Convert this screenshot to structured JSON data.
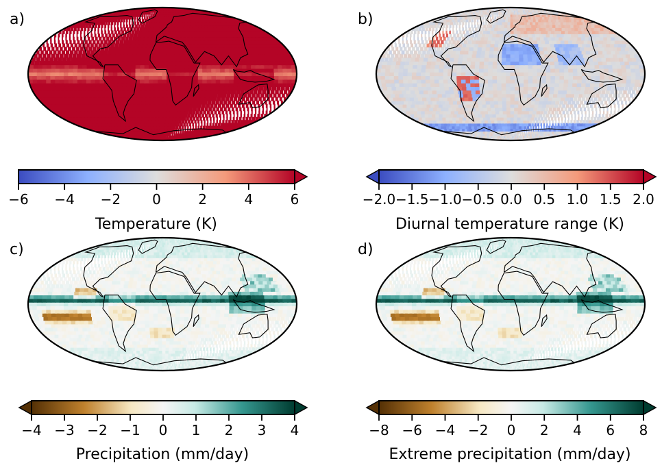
{
  "colors": {
    "coolwarm_low": "#3b4cc0",
    "coolwarm_mid": "#dddddd",
    "coolwarm_high": "#b40426",
    "brbg_low": "#543005",
    "brbg_mid": "#f5f5f5",
    "brbg_high": "#003c30",
    "land_outline": "#000000"
  },
  "chart_data": [
    {
      "type": "heatmap",
      "panel_label": "a)",
      "projection": "Mollweide (global)",
      "colormap": "coolwarm",
      "cbar_label": "Temperature (K)",
      "ticks": [
        "−6",
        "−4",
        "−2",
        "0",
        "2",
        "4",
        "6"
      ],
      "range": [
        -6,
        6
      ],
      "extend": "max",
      "pattern": "warming"
    },
    {
      "type": "heatmap",
      "panel_label": "b)",
      "projection": "Mollweide (global)",
      "colormap": "coolwarm",
      "cbar_label": "Diurnal temperature range (K)",
      "ticks": [
        "−2.0",
        "−1.5",
        "−1.0",
        "−0.5",
        "0.0",
        "0.5",
        "1.0",
        "1.5",
        "2.0"
      ],
      "range": [
        -2,
        2
      ],
      "extend": "both",
      "pattern": "dtr"
    },
    {
      "type": "heatmap",
      "panel_label": "c)",
      "projection": "Mollweide (global)",
      "colormap": "BrBG",
      "cbar_label": "Precipitation (mm/day)",
      "ticks": [
        "−4",
        "−3",
        "−2",
        "−1",
        "0",
        "1",
        "2",
        "3",
        "4"
      ],
      "range": [
        -4,
        4
      ],
      "extend": "both",
      "pattern": "precip"
    },
    {
      "type": "heatmap",
      "panel_label": "d)",
      "projection": "Mollweide (global)",
      "colormap": "BrBG",
      "cbar_label": "Extreme precipitation (mm/day)",
      "ticks": [
        "−8",
        "−6",
        "−4",
        "−2",
        "0",
        "2",
        "4",
        "6",
        "8"
      ],
      "range": [
        -8,
        8
      ],
      "extend": "both",
      "pattern": "precip"
    }
  ]
}
